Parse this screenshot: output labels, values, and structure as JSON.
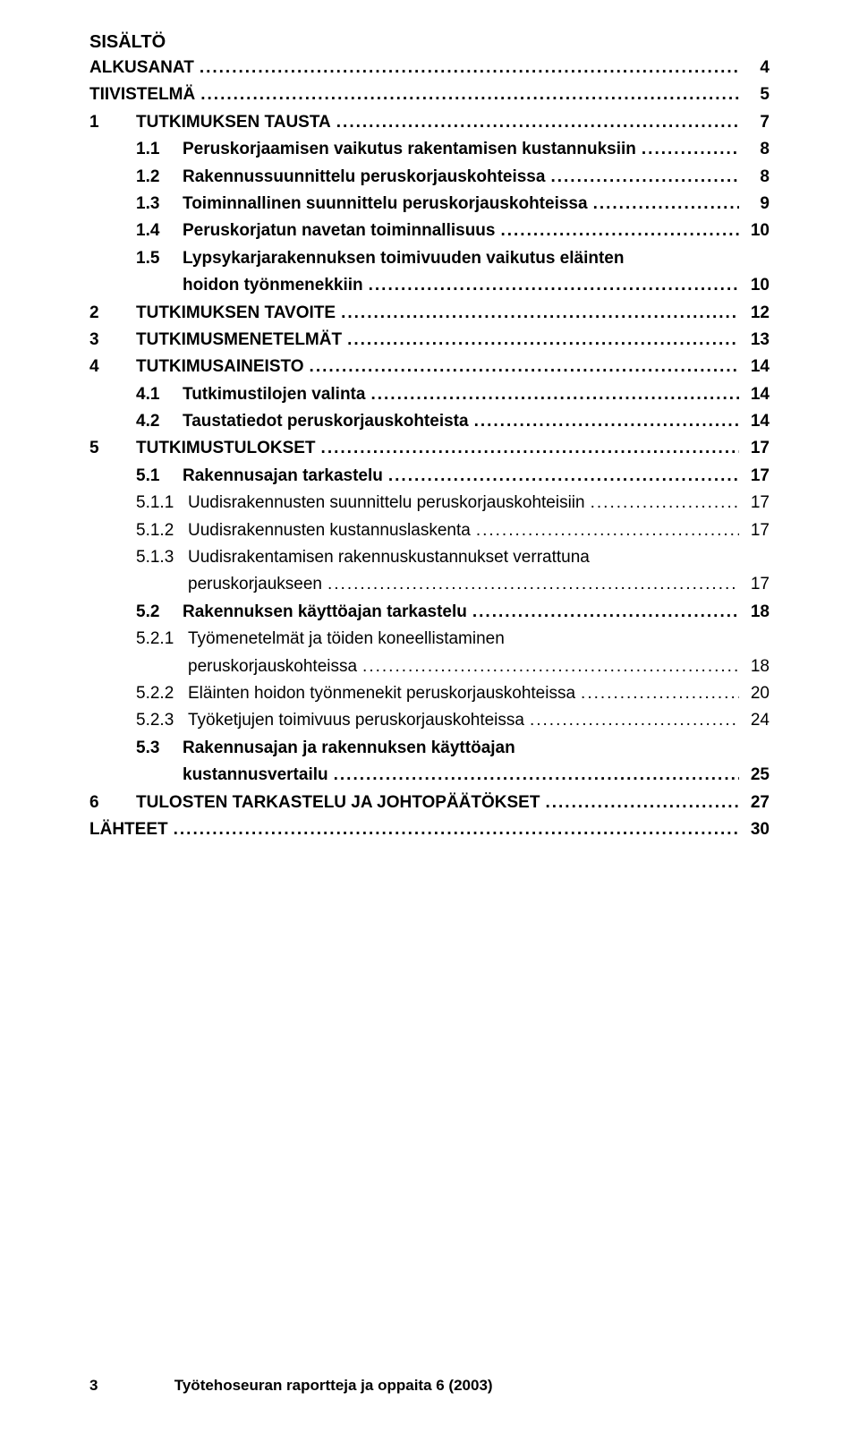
{
  "colors": {
    "text": "#000000",
    "background": "#ffffff",
    "leader": "#000000"
  },
  "typography": {
    "body_family": "Trebuchet MS",
    "body_size_pt": 14,
    "bold_weight": 700
  },
  "heading": "SISÄLTÖ",
  "toc": [
    {
      "type": "l0",
      "bold": true,
      "num": "",
      "label": "ALKUSANAT",
      "page": "4"
    },
    {
      "type": "l0",
      "bold": true,
      "num": "",
      "label": "TIIVISTELMÄ",
      "page": "5"
    },
    {
      "type": "l0",
      "bold": true,
      "num": "1",
      "label": "TUTKIMUKSEN TAUSTA",
      "page": "7"
    },
    {
      "type": "l1",
      "bold": true,
      "num": "1.1",
      "label": "Peruskorjaamisen vaikutus rakentamisen kustannuksiin",
      "page": "8"
    },
    {
      "type": "l1",
      "bold": true,
      "num": "1.2",
      "label": "Rakennussuunnittelu peruskorjauskohteissa",
      "page": "8"
    },
    {
      "type": "l1",
      "bold": true,
      "num": "1.3",
      "label": "Toiminnallinen suunnittelu peruskorjauskohteissa",
      "page": "9"
    },
    {
      "type": "l1",
      "bold": true,
      "num": "1.4",
      "label": "Peruskorjatun navetan toiminnallisuus",
      "page": "10"
    },
    {
      "type": "l1_wrap",
      "bold": true,
      "num": "1.5",
      "label1": "Lypsykarjarakennuksen toimivuuden vaikutus eläinten",
      "label2": "hoidon työnmenekkiin",
      "page": "10"
    },
    {
      "type": "l0",
      "bold": true,
      "num": "2",
      "label": "TUTKIMUKSEN TAVOITE",
      "page": "12"
    },
    {
      "type": "l0",
      "bold": true,
      "num": "3",
      "label": "TUTKIMUSMENETELMÄT",
      "page": "13"
    },
    {
      "type": "l0",
      "bold": true,
      "num": "4",
      "label": "TUTKIMUSAINEISTO",
      "page": "14"
    },
    {
      "type": "l1",
      "bold": true,
      "num": "4.1",
      "label": "Tutkimustilojen valinta",
      "page": "14"
    },
    {
      "type": "l1",
      "bold": true,
      "num": "4.2",
      "label": "Taustatiedot peruskorjauskohteista",
      "page": "14"
    },
    {
      "type": "l0",
      "bold": true,
      "num": "5",
      "label": "TUTKIMUSTULOKSET",
      "page": "17"
    },
    {
      "type": "l1",
      "bold": true,
      "num": "5.1",
      "label": "Rakennusajan tarkastelu",
      "page": "17"
    },
    {
      "type": "l2",
      "bold": false,
      "num": "5.1.1",
      "label": "Uudisrakennusten suunnittelu peruskorjauskohteisiin",
      "page": "17"
    },
    {
      "type": "l2",
      "bold": false,
      "num": "5.1.2",
      "label": "Uudisrakennusten kustannuslaskenta",
      "page": "17"
    },
    {
      "type": "l2_wrap",
      "bold": false,
      "num": "5.1.3",
      "label1": "Uudisrakentamisen rakennuskustannukset verrattuna",
      "label2": "peruskorjaukseen",
      "page": "17"
    },
    {
      "type": "l1",
      "bold": true,
      "num": "5.2",
      "label": "Rakennuksen käyttöajan tarkastelu",
      "page": "18"
    },
    {
      "type": "l2_wrap",
      "bold": false,
      "num": "5.2.1",
      "label1": "Työmenetelmät ja töiden koneellistaminen",
      "label2": "peruskorjauskohteissa",
      "page": "18"
    },
    {
      "type": "l2",
      "bold": false,
      "num": "5.2.2",
      "label": "Eläinten hoidon työnmenekit peruskorjauskohteissa",
      "page": "20"
    },
    {
      "type": "l2",
      "bold": false,
      "num": "5.2.3",
      "label": "Työketjujen toimivuus peruskorjauskohteissa",
      "page": "24"
    },
    {
      "type": "l1_wrap",
      "bold": true,
      "num": "5.3",
      "label1": "Rakennusajan ja rakennuksen käyttöajan",
      "label2": "kustannusvertailu",
      "page": "25"
    },
    {
      "type": "l0",
      "bold": true,
      "num": "6",
      "label": "TULOSTEN TARKASTELU JA JOHTOPÄÄTÖKSET",
      "page": "27"
    },
    {
      "type": "l0",
      "bold": true,
      "num": "",
      "label": "LÄHTEET",
      "page": "30"
    }
  ],
  "footer": {
    "page_number": "3",
    "text": "Työtehoseuran raportteja ja oppaita 6 (2003)"
  }
}
